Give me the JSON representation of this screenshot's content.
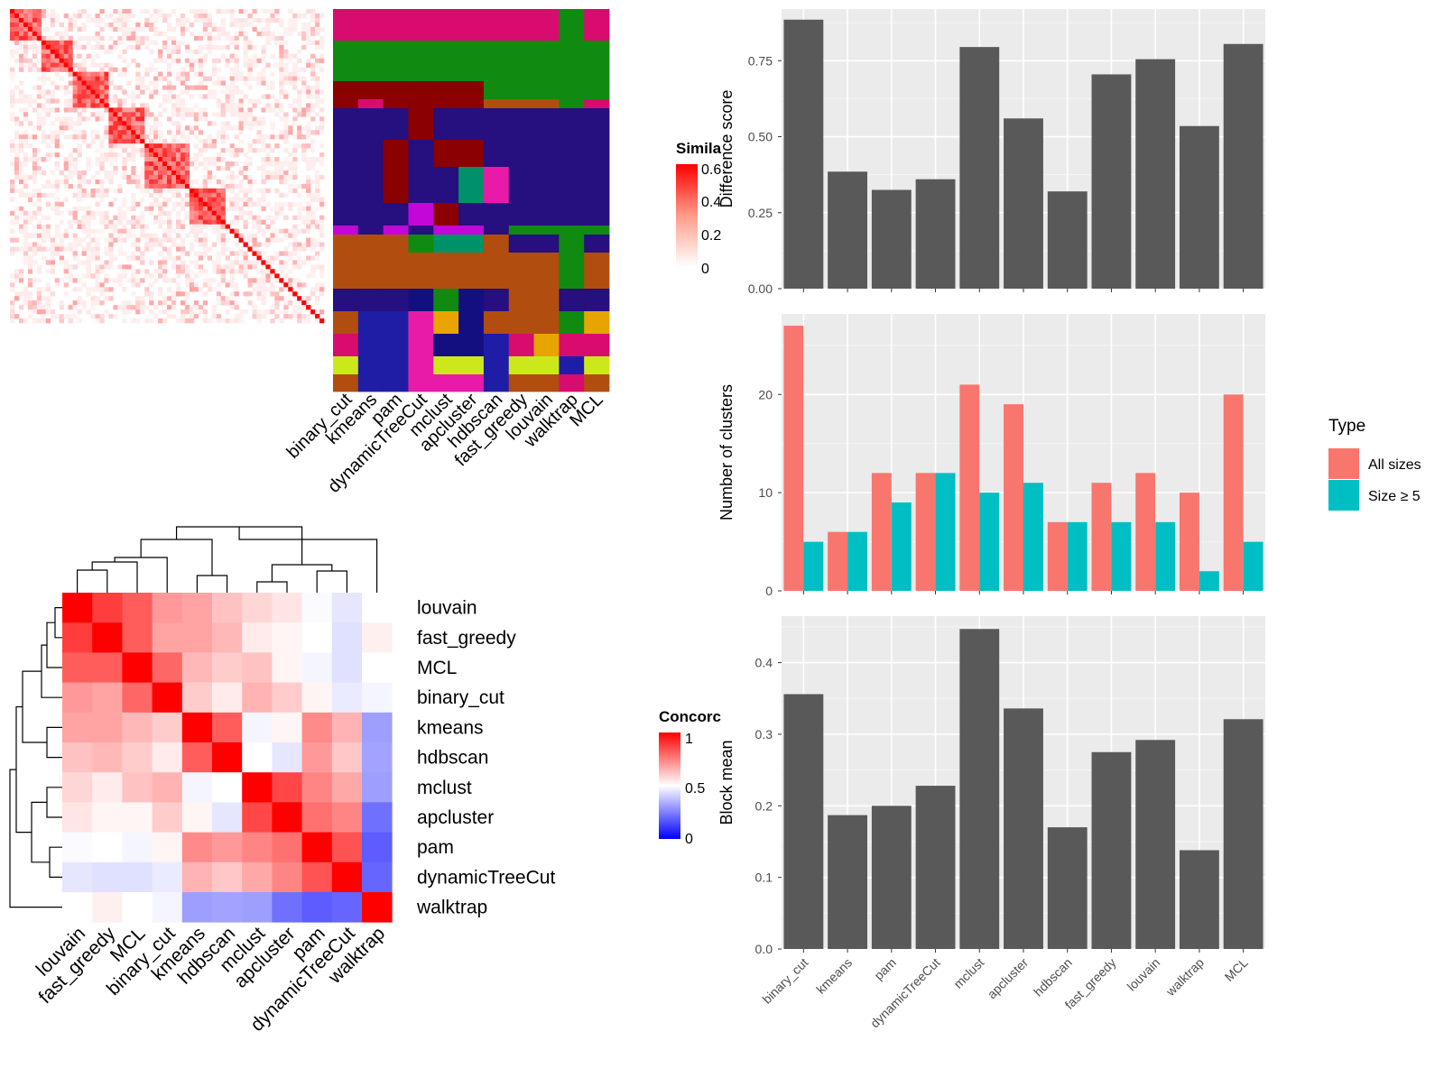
{
  "panels": {
    "similarity_legend": {
      "title": "Simila",
      "ticks": [
        "0.6",
        "0.4",
        "0.2",
        "0"
      ]
    },
    "concordance_legend": {
      "title": "Concorc",
      "ticks": [
        "1",
        "0.5",
        "0"
      ]
    },
    "type_legend": {
      "title": "Type",
      "items": [
        "All sizes",
        "Size ≥ 5"
      ]
    }
  },
  "colors": {
    "bar_gray": "#595959",
    "all_sizes": "#F8766D",
    "size5": "#00BFC4",
    "panel_bg": "#EBEBEB",
    "heat_red": "#FF0000",
    "heat_blue": "#0000FF",
    "cluster_palette": [
      "#D80C6E",
      "#108A10",
      "#8B0000",
      "#260F7E",
      "#B14E0F",
      "#C207D8",
      "#E8A400",
      "#00916A",
      "#E81BA8",
      "#140F80",
      "#1F1DA6",
      "#CDE81A"
    ]
  },
  "chart_data": [
    {
      "type": "heatmap",
      "name": "similarity-heatmap",
      "title": "",
      "xlabel": "",
      "ylabel": "",
      "legend_title": "Simila",
      "ylim": [
        0,
        0.6
      ],
      "x": []
    },
    {
      "type": "heatmap",
      "name": "cluster-assignment-heatmap",
      "title": "",
      "xlabel": "",
      "ylabel": "",
      "x": [
        "binary_cut",
        "kmeans",
        "pam",
        "dynamicTreeCut",
        "mclust",
        "apcluster",
        "hdbscan",
        "fast_greedy",
        "louvain",
        "walktrap",
        "MCL"
      ]
    },
    {
      "type": "heatmap",
      "name": "concordance-heatmap",
      "title": "",
      "xlabel": "",
      "ylabel": "",
      "legend_title": "Concorc",
      "ylim": [
        0,
        1
      ],
      "order": [
        "louvain",
        "fast_greedy",
        "MCL",
        "binary_cut",
        "kmeans",
        "hdbscan",
        "mclust",
        "apcluster",
        "pam",
        "dynamicTreeCut",
        "walktrap"
      ],
      "matrix": [
        [
          1.0,
          0.88,
          0.82,
          0.7,
          0.68,
          0.62,
          0.58,
          0.55,
          0.49,
          0.45,
          0.5
        ],
        [
          0.88,
          1.0,
          0.82,
          0.68,
          0.68,
          0.64,
          0.54,
          0.52,
          0.5,
          0.44,
          0.53
        ],
        [
          0.82,
          0.82,
          1.0,
          0.8,
          0.64,
          0.6,
          0.62,
          0.52,
          0.48,
          0.44,
          0.5
        ],
        [
          0.7,
          0.68,
          0.8,
          1.0,
          0.6,
          0.54,
          0.65,
          0.6,
          0.52,
          0.46,
          0.48
        ],
        [
          0.68,
          0.68,
          0.64,
          0.6,
          1.0,
          0.82,
          0.48,
          0.52,
          0.73,
          0.65,
          0.31
        ],
        [
          0.62,
          0.64,
          0.6,
          0.54,
          0.82,
          1.0,
          0.5,
          0.45,
          0.7,
          0.61,
          0.32
        ],
        [
          0.58,
          0.54,
          0.62,
          0.65,
          0.48,
          0.5,
          1.0,
          0.86,
          0.74,
          0.67,
          0.31
        ],
        [
          0.55,
          0.52,
          0.52,
          0.6,
          0.52,
          0.45,
          0.86,
          1.0,
          0.78,
          0.74,
          0.22
        ],
        [
          0.49,
          0.5,
          0.48,
          0.52,
          0.73,
          0.7,
          0.74,
          0.78,
          1.0,
          0.84,
          0.18
        ],
        [
          0.45,
          0.44,
          0.44,
          0.46,
          0.65,
          0.61,
          0.67,
          0.74,
          0.84,
          1.0,
          0.2
        ],
        [
          0.5,
          0.53,
          0.5,
          0.48,
          0.31,
          0.32,
          0.31,
          0.22,
          0.18,
          0.2,
          1.0
        ]
      ]
    },
    {
      "type": "bar",
      "name": "difference-score",
      "title": "",
      "xlabel": "",
      "ylabel": "Difference score",
      "categories": [
        "binary_cut",
        "kmeans",
        "pam",
        "dynamicTreeCut",
        "mclust",
        "apcluster",
        "hdbscan",
        "fast_greedy",
        "louvain",
        "walktrap",
        "MCL"
      ],
      "values": [
        0.885,
        0.385,
        0.325,
        0.36,
        0.795,
        0.56,
        0.32,
        0.705,
        0.755,
        0.535,
        0.805
      ],
      "ylim": [
        0,
        0.92
      ],
      "yticks": [
        "0.00",
        "0.25",
        "0.50",
        "0.75"
      ]
    },
    {
      "type": "bar",
      "name": "number-of-clusters",
      "title": "",
      "xlabel": "",
      "ylabel": "Number of clusters",
      "categories": [
        "binary_cut",
        "kmeans",
        "pam",
        "dynamicTreeCut",
        "mclust",
        "apcluster",
        "hdbscan",
        "fast_greedy",
        "louvain",
        "walktrap",
        "MCL"
      ],
      "series": [
        {
          "name": "All sizes",
          "values": [
            27,
            6,
            12,
            12,
            21,
            19,
            7,
            11,
            12,
            10,
            20
          ]
        },
        {
          "name": "Size ≥ 5",
          "values": [
            5,
            6,
            9,
            12,
            10,
            11,
            7,
            7,
            7,
            2,
            5
          ]
        }
      ],
      "ylim": [
        0,
        28.2
      ],
      "yticks": [
        "0",
        "10",
        "20"
      ],
      "legend": "right"
    },
    {
      "type": "bar",
      "name": "block-mean",
      "title": "",
      "xlabel": "",
      "ylabel": "Block mean",
      "categories": [
        "binary_cut",
        "kmeans",
        "pam",
        "dynamicTreeCut",
        "mclust",
        "apcluster",
        "hdbscan",
        "fast_greedy",
        "louvain",
        "walktrap",
        "MCL"
      ],
      "values": [
        0.356,
        0.187,
        0.2,
        0.228,
        0.447,
        0.336,
        0.17,
        0.275,
        0.292,
        0.138,
        0.321
      ],
      "ylim": [
        0,
        0.465
      ],
      "yticks": [
        "0.0",
        "0.1",
        "0.2",
        "0.3",
        "0.4"
      ]
    }
  ]
}
